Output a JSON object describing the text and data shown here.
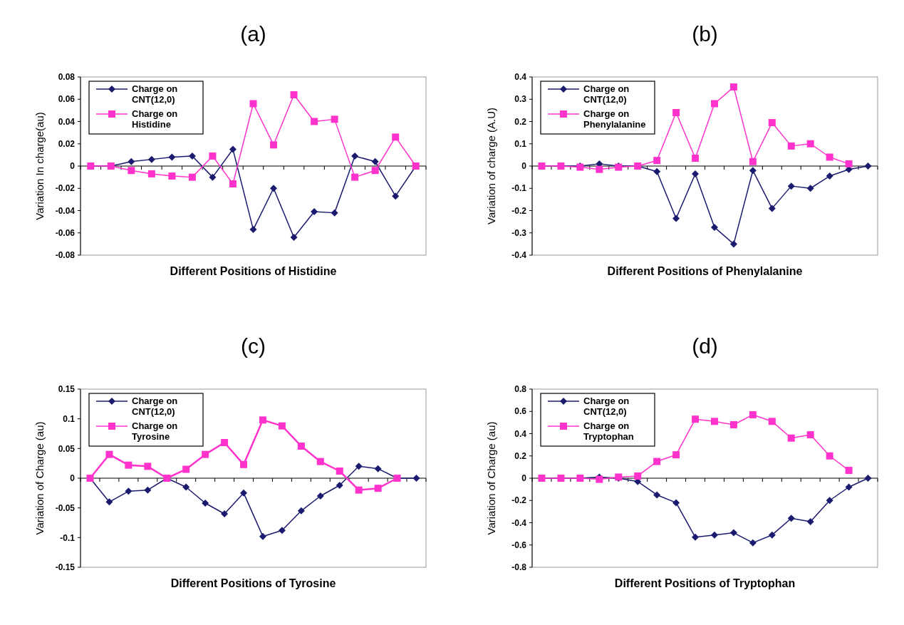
{
  "chart_data": [
    {
      "type": "line",
      "title": "(a)",
      "xlabel": "Different Positions of Histidine",
      "ylabel": "Variation In charge(au)",
      "categories": [
        null,
        null,
        null,
        null,
        null,
        null,
        null,
        null,
        null,
        null,
        null,
        null,
        null,
        null,
        null,
        null,
        null
      ],
      "ylim": [
        -0.08,
        0.08
      ],
      "yticks": [
        -0.08,
        -0.06,
        -0.04,
        -0.02,
        0,
        0.02,
        0.04,
        0.06,
        0.08
      ],
      "legend": "top left",
      "series": [
        {
          "name": "Charge on CNT(12,0)",
          "color": "#1a1a6e",
          "marker": "diamond",
          "values": [
            0,
            0,
            0.004,
            0.006,
            0.008,
            0.009,
            -0.01,
            0.015,
            -0.057,
            -0.02,
            -0.064,
            -0.041,
            -0.042,
            0.009,
            0.004,
            -0.027,
            0
          ]
        },
        {
          "name": "Charge on Histidine",
          "color": "#ff33cc",
          "marker": "square",
          "values": [
            0,
            0,
            -0.004,
            -0.007,
            -0.009,
            -0.01,
            0.009,
            -0.016,
            0.056,
            0.019,
            0.064,
            0.04,
            0.042,
            -0.01,
            -0.004,
            0.026,
            0
          ]
        }
      ]
    },
    {
      "type": "line",
      "title": "(b)",
      "xlabel": "Different Positions of Phenylalanine",
      "ylabel": "Variation of charge (A.U)",
      "categories": [
        null,
        null,
        null,
        null,
        null,
        null,
        null,
        null,
        null,
        null,
        null,
        null,
        null,
        null,
        null,
        null,
        null,
        null
      ],
      "ylim": [
        -0.4,
        0.4
      ],
      "yticks": [
        -0.4,
        -0.3,
        -0.2,
        -0.1,
        0,
        0.1,
        0.2,
        0.3,
        0.4
      ],
      "legend": "top left",
      "series": [
        {
          "name": "Charge on CNT(12,0)",
          "color": "#1a1a6e",
          "marker": "diamond",
          "values": [
            0,
            0,
            0,
            0.01,
            0,
            0,
            -0.025,
            -0.235,
            -0.035,
            -0.275,
            -0.35,
            -0.02,
            -0.19,
            -0.09,
            -0.1,
            -0.045,
            -0.015,
            0
          ]
        },
        {
          "name": "Charge on Phenylalanine",
          "color": "#ff33cc",
          "marker": "square",
          "values": [
            0,
            0,
            -0.005,
            -0.015,
            -0.005,
            0,
            0.025,
            0.24,
            0.035,
            0.28,
            0.355,
            0.02,
            0.195,
            0.09,
            0.1,
            0.04,
            0.01,
            null
          ]
        }
      ]
    },
    {
      "type": "line",
      "title": "(c)",
      "xlabel": "Different Positions of Tyrosine",
      "ylabel": "Variation of Charge  (au)",
      "categories": [
        null,
        null,
        null,
        null,
        null,
        null,
        null,
        null,
        null,
        null,
        null,
        null,
        null,
        null,
        null,
        null,
        null,
        null
      ],
      "ylim": [
        -0.15,
        0.15
      ],
      "yticks": [
        -0.15,
        -0.1,
        -0.05,
        0,
        0.05,
        0.1,
        0.15
      ],
      "legend": "top left",
      "series": [
        {
          "name": "Charge on CNT(12,0)",
          "color": "#1a1a6e",
          "marker": "diamond",
          "values": [
            0,
            -0.04,
            -0.022,
            -0.02,
            0,
            -0.015,
            -0.042,
            -0.06,
            -0.025,
            -0.098,
            -0.088,
            -0.055,
            -0.03,
            -0.012,
            0.02,
            0.016,
            0,
            0
          ]
        },
        {
          "name": "Charge on Tyrosine",
          "color": "#ff33cc",
          "marker": "square",
          "values": [
            0,
            0.04,
            0.022,
            0.02,
            0,
            0.015,
            0.04,
            0.06,
            0.023,
            0.098,
            0.088,
            0.054,
            0.028,
            0.012,
            -0.02,
            -0.017,
            0,
            null
          ]
        }
      ]
    },
    {
      "type": "line",
      "title": "(d)",
      "xlabel": "Different Positions of Tryptophan",
      "ylabel": "Variation of Charge (au)",
      "categories": [
        null,
        null,
        null,
        null,
        null,
        null,
        null,
        null,
        null,
        null,
        null,
        null,
        null,
        null,
        null,
        null,
        null,
        null
      ],
      "ylim": [
        -0.8,
        0.8
      ],
      "yticks": [
        -0.8,
        -0.6,
        -0.4,
        -0.2,
        0,
        0.2,
        0.4,
        0.6,
        0.8
      ],
      "legend": "top left",
      "series": [
        {
          "name": "Charge on CNT(12,0)",
          "color": "#1a1a6e",
          "marker": "diamond",
          "values": [
            0,
            0,
            0,
            0.01,
            0,
            -0.03,
            -0.15,
            -0.22,
            -0.53,
            -0.51,
            -0.49,
            -0.58,
            -0.51,
            -0.36,
            -0.39,
            -0.2,
            -0.08,
            0
          ]
        },
        {
          "name": "Charge on Tryptophan",
          "color": "#ff33cc",
          "marker": "square",
          "values": [
            0,
            0,
            0,
            -0.01,
            0.01,
            0.02,
            0.15,
            0.21,
            0.53,
            0.51,
            0.48,
            0.57,
            0.51,
            0.36,
            0.39,
            0.2,
            0.07,
            null
          ]
        }
      ]
    }
  ]
}
